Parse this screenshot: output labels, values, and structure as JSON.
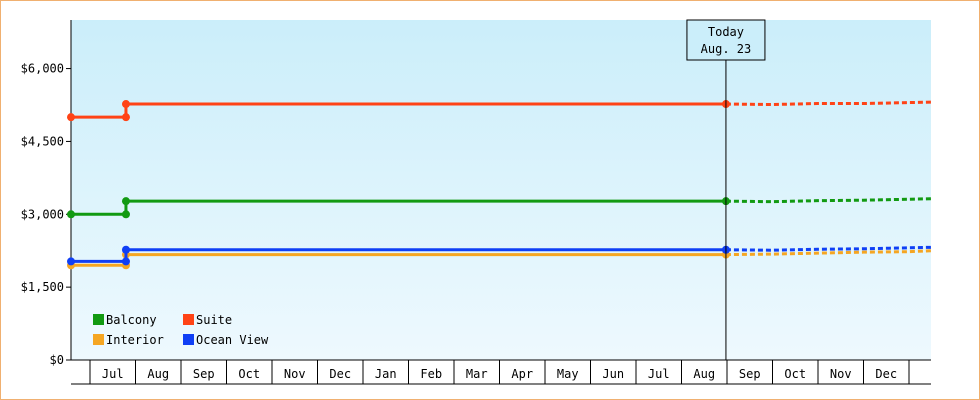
{
  "chart_data": {
    "type": "line",
    "y_ticks": [
      "$0",
      "$1,500",
      "$3,000",
      "$4,500",
      "$6,000"
    ],
    "y_tick_values": [
      0,
      1500,
      3000,
      4500,
      6000
    ],
    "ylim": [
      0,
      7000
    ],
    "x_labels": [
      "Jul",
      "Aug",
      "Sep",
      "Oct",
      "Nov",
      "Dec",
      "Jan",
      "Feb",
      "Mar",
      "Apr",
      "May",
      "Jun",
      "Jul",
      "Aug",
      "Sep",
      "Oct",
      "Nov",
      "Dec"
    ],
    "today": {
      "line1": "Today",
      "line2": "Aug. 23",
      "index": 14.3
    },
    "background_gradient": [
      "#cbeefa",
      "#eef9fe"
    ],
    "grid": false,
    "legend_placement": "bottom-left",
    "series": [
      {
        "name": "Balcony",
        "color": "#129a12",
        "points": [
          [
            0,
            3000
          ],
          [
            1.2,
            3000
          ],
          [
            1.2,
            3270
          ],
          [
            14.3,
            3270
          ]
        ],
        "forecast": [
          [
            14.3,
            3270
          ],
          [
            15.3,
            3260
          ],
          [
            16.3,
            3280
          ],
          [
            17.3,
            3290
          ],
          [
            18.3,
            3310
          ],
          [
            19.3,
            3320
          ]
        ]
      },
      {
        "name": "Suite",
        "color": "#ff4316",
        "points": [
          [
            0,
            5000
          ],
          [
            1.2,
            5000
          ],
          [
            1.2,
            5270
          ],
          [
            14.3,
            5270
          ]
        ],
        "forecast": [
          [
            14.3,
            5270
          ],
          [
            15.3,
            5260
          ],
          [
            16.3,
            5280
          ],
          [
            17.3,
            5280
          ],
          [
            18.3,
            5300
          ],
          [
            19.3,
            5310
          ]
        ]
      },
      {
        "name": "Interior",
        "color": "#f5a623",
        "points": [
          [
            0,
            1950
          ],
          [
            1.2,
            1950
          ],
          [
            1.2,
            2170
          ],
          [
            14.3,
            2170
          ]
        ],
        "forecast": [
          [
            14.3,
            2170
          ],
          [
            15.3,
            2180
          ],
          [
            16.3,
            2200
          ],
          [
            17.3,
            2220
          ],
          [
            18.3,
            2230
          ],
          [
            19.3,
            2250
          ]
        ]
      },
      {
        "name": "Ocean View",
        "color": "#0f3ff5",
        "points": [
          [
            0,
            2030
          ],
          [
            1.2,
            2030
          ],
          [
            1.2,
            2270
          ],
          [
            14.3,
            2270
          ]
        ],
        "forecast": [
          [
            14.3,
            2270
          ],
          [
            15.3,
            2260
          ],
          [
            16.3,
            2280
          ],
          [
            17.3,
            2290
          ],
          [
            18.3,
            2310
          ],
          [
            19.3,
            2320
          ]
        ]
      }
    ],
    "markers": [
      {
        "series": 0,
        "points": [
          [
            0,
            3000
          ],
          [
            1.2,
            3000
          ],
          [
            1.2,
            3270
          ],
          [
            14.3,
            3270
          ]
        ]
      },
      {
        "series": 1,
        "points": [
          [
            0,
            5000
          ],
          [
            1.2,
            5000
          ],
          [
            1.2,
            5270
          ],
          [
            14.3,
            5270
          ]
        ]
      },
      {
        "series": 2,
        "points": [
          [
            0,
            1950
          ],
          [
            1.2,
            1950
          ],
          [
            1.2,
            2170
          ],
          [
            14.3,
            2170
          ]
        ]
      },
      {
        "series": 3,
        "points": [
          [
            0,
            2030
          ],
          [
            1.2,
            2030
          ],
          [
            1.2,
            2270
          ],
          [
            14.3,
            2270
          ]
        ]
      }
    ]
  }
}
